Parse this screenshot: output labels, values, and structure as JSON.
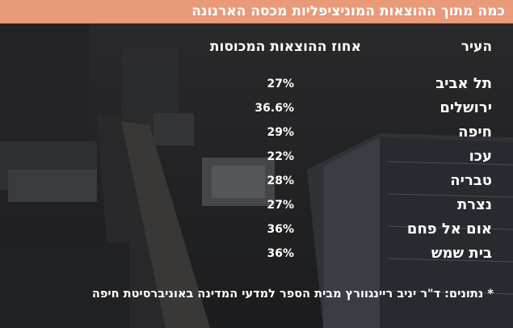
{
  "title": "כמה מתוך ההוצאות המוניציפליות מכסה הארנונה",
  "headers": {
    "city": "העיר",
    "value": "אחוז ההוצאות המכוסות"
  },
  "note": "* נתונים: ד\"ר יניב ריינגוורץ מבית הספר למדעי המדינה באוניברסיטת חיפה",
  "colors": {
    "title_bar": "#e89a79",
    "text": "#ffffff",
    "background": "#1e1f21"
  },
  "chart_data": {
    "type": "table",
    "title": "כמה מתוך ההוצאות המוניציפליות מכסה הארנונה",
    "columns": [
      "העיר",
      "אחוז ההוצאות המכוסות"
    ],
    "rows": [
      {
        "city": "תל אביב",
        "display": "27%",
        "value": 27
      },
      {
        "city": "ירושלים",
        "display": "36.6%",
        "value": 36.6
      },
      {
        "city": "חיפה",
        "display": "29%",
        "value": 29
      },
      {
        "city": "עכו",
        "display": "22%",
        "value": 22
      },
      {
        "city": "טבריה",
        "display": "28%",
        "value": 28
      },
      {
        "city": "נצרת",
        "display": "27%",
        "value": 27
      },
      {
        "city": "אום אל פחם",
        "display": "36%",
        "value": 36
      },
      {
        "city": "בית שמש",
        "display": "36%",
        "value": 36
      }
    ]
  }
}
